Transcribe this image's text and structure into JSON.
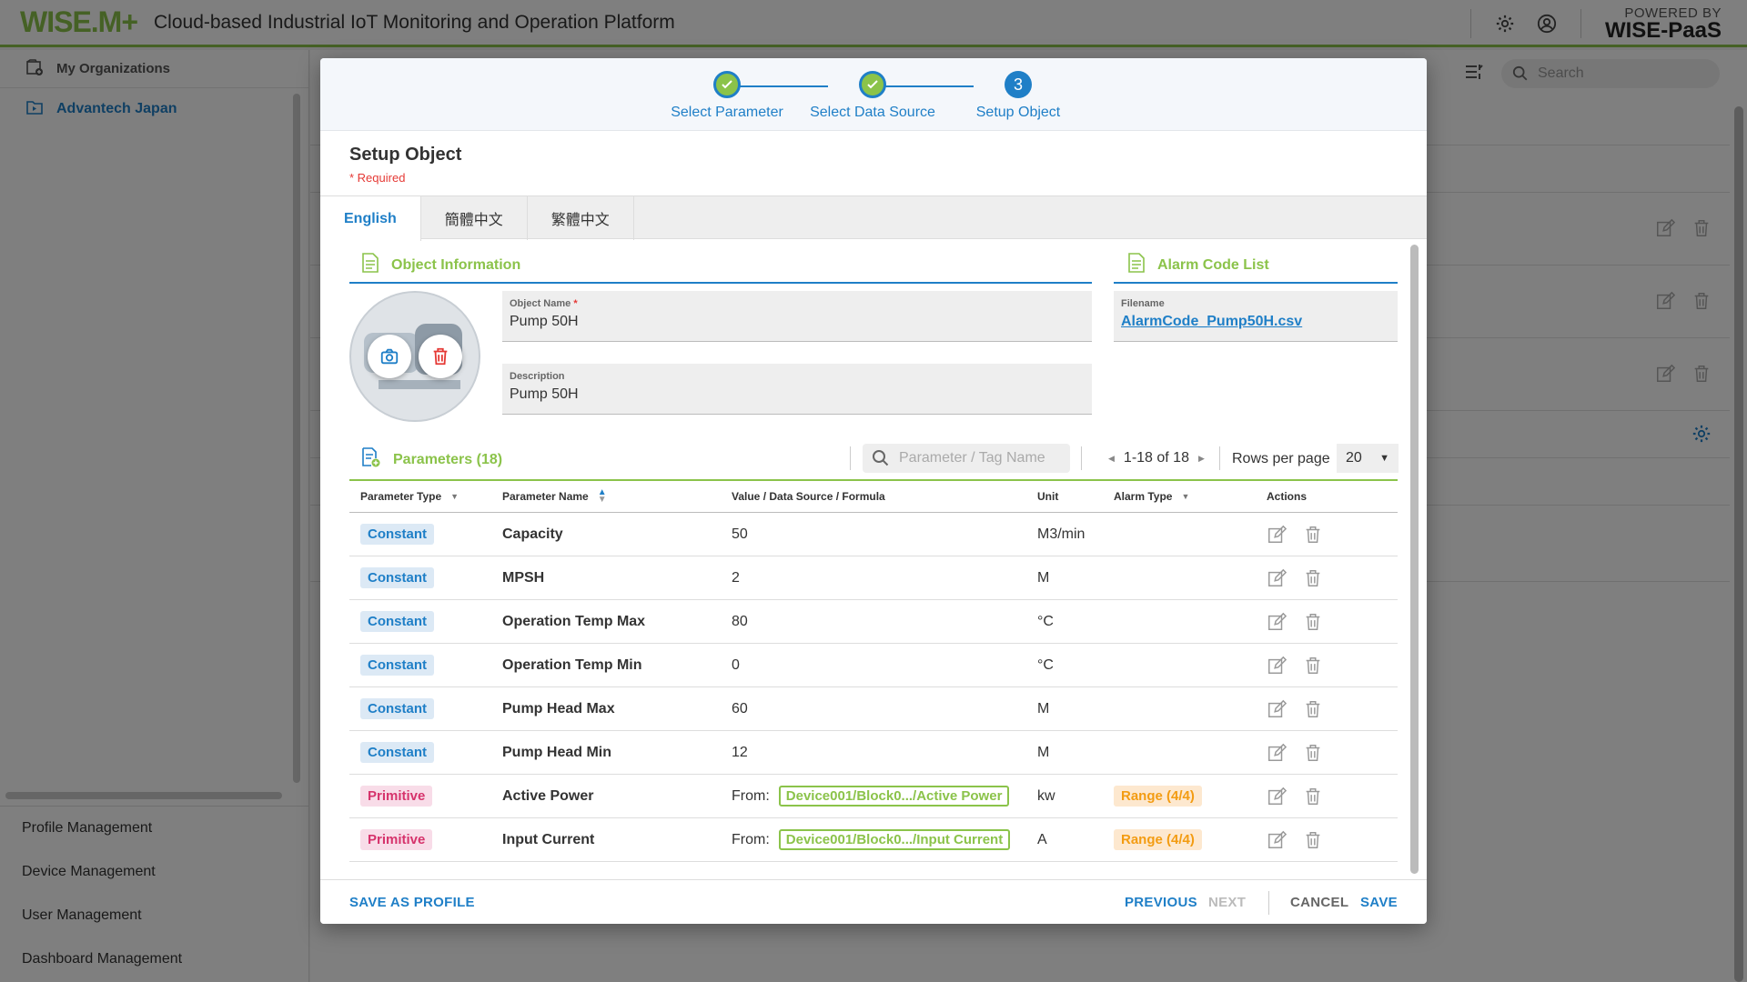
{
  "header": {
    "logo": "WISE.M+",
    "app_title": "Cloud-based Industrial IoT Monitoring and Operation Platform",
    "powered_by_line1": "POWERED BY",
    "powered_by_line2": "WISE-PaaS"
  },
  "sidebar": {
    "org_header": "My Organizations",
    "org_item": "Advantech Japan",
    "menu": [
      "Profile Management",
      "Device Management",
      "User Management",
      "Dashboard Management"
    ]
  },
  "background": {
    "search_placeholder": "Search"
  },
  "dialog": {
    "steps": [
      {
        "label": "Select Parameter",
        "state": "done"
      },
      {
        "label": "Select Data Source",
        "state": "done"
      },
      {
        "label": "Setup Object",
        "state": "active",
        "number": "3"
      }
    ],
    "title": "Setup Object",
    "required_note": "* Required",
    "tabs": [
      {
        "label": "English",
        "active": true
      },
      {
        "label": "簡體中文",
        "active": false
      },
      {
        "label": "繁體中文",
        "active": false
      }
    ],
    "object_info": {
      "section_title": "Object Information",
      "object_name_label": "Object Name",
      "object_name_required": "*",
      "object_name_value": "Pump 50H",
      "description_label": "Description",
      "description_value": "Pump 50H"
    },
    "alarm_code": {
      "section_title": "Alarm Code List",
      "filename_label": "Filename",
      "filename_value": "AlarmCode_Pump50H.csv"
    },
    "parameters": {
      "section_title": "Parameters (18)",
      "search_placeholder": "Parameter / Tag Name",
      "pagination": "1-18 of 18",
      "rows_per_page_label": "Rows per page",
      "rows_per_page_value": "20",
      "columns": [
        "Parameter Type",
        "Parameter Name",
        "Value / Data Source / Formula",
        "Unit",
        "Alarm Type",
        "Actions"
      ],
      "rows": [
        {
          "type": "Constant",
          "name": "Capacity",
          "value": "50",
          "unit": "M3/min",
          "alarm": ""
        },
        {
          "type": "Constant",
          "name": "MPSH",
          "value": "2",
          "unit": "M",
          "alarm": ""
        },
        {
          "type": "Constant",
          "name": "Operation Temp Max",
          "value": "80",
          "unit": "°C",
          "alarm": ""
        },
        {
          "type": "Constant",
          "name": "Operation Temp Min",
          "value": "0",
          "unit": "°C",
          "alarm": ""
        },
        {
          "type": "Constant",
          "name": "Pump Head Max",
          "value": "60",
          "unit": "M",
          "alarm": ""
        },
        {
          "type": "Constant",
          "name": "Pump Head Min",
          "value": "12",
          "unit": "M",
          "alarm": ""
        },
        {
          "type": "Primitive",
          "name": "Active Power",
          "from_label": "From:",
          "source": "Device001/Block0.../Active Power",
          "unit": "kw",
          "alarm": "Range (4/4)"
        },
        {
          "type": "Primitive",
          "name": "Input Current",
          "from_label": "From:",
          "source": "Device001/Block0.../Input Current",
          "unit": "A",
          "alarm": "Range (4/4)"
        }
      ]
    },
    "footer": {
      "save_as_profile": "SAVE AS PROFILE",
      "previous": "PREVIOUS",
      "next": "NEXT",
      "cancel": "CANCEL",
      "save": "SAVE"
    }
  },
  "colors": {
    "primary_blue": "#1f7fc7",
    "brand_green": "#8bc34a",
    "danger_red": "#e53935"
  }
}
